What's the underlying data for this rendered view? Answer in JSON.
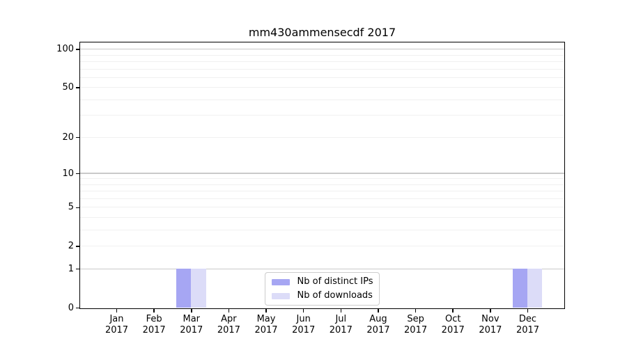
{
  "title": "mm430ammensecdf 2017",
  "chart_data": {
    "type": "bar",
    "title": "mm430ammensecdf 2017",
    "categories": [
      "Jan 2017",
      "Feb 2017",
      "Mar 2017",
      "Apr 2017",
      "May 2017",
      "Jun 2017",
      "Jul 2017",
      "Aug 2017",
      "Sep 2017",
      "Oct 2017",
      "Nov 2017",
      "Dec 2017"
    ],
    "series": [
      {
        "name": "Nb of distinct IPs",
        "color": "#a6a6f3",
        "values": [
          0,
          0,
          1,
          0,
          0,
          0,
          0,
          0,
          0,
          0,
          0,
          1
        ]
      },
      {
        "name": "Nb of downloads",
        "color": "#dcdcf8",
        "values": [
          0,
          0,
          1,
          0,
          0,
          0,
          0,
          0,
          0,
          0,
          0,
          1
        ]
      }
    ],
    "xlabel": "",
    "ylabel": "",
    "yscale": "log1p",
    "ylim": [
      0,
      113
    ],
    "y_ticks": [
      0,
      1,
      2,
      5,
      10,
      20,
      50,
      100
    ],
    "y_major_gridlines": [
      1,
      10,
      100
    ],
    "y_minor_gridlines": [
      2,
      3,
      4,
      5,
      6,
      7,
      8,
      9,
      20,
      30,
      40,
      50,
      60,
      70,
      80,
      90
    ],
    "grid": true,
    "legend_position": "lower center",
    "bar_width_fraction": 0.4
  },
  "colors": {
    "background": "#ffffff",
    "spine": "#000000",
    "grid_major": "#c9c9c9",
    "grid_minor": "#f0f0f0",
    "text": "#000000",
    "legend_border": "#cccccc",
    "legend_background": "#ffffff"
  }
}
